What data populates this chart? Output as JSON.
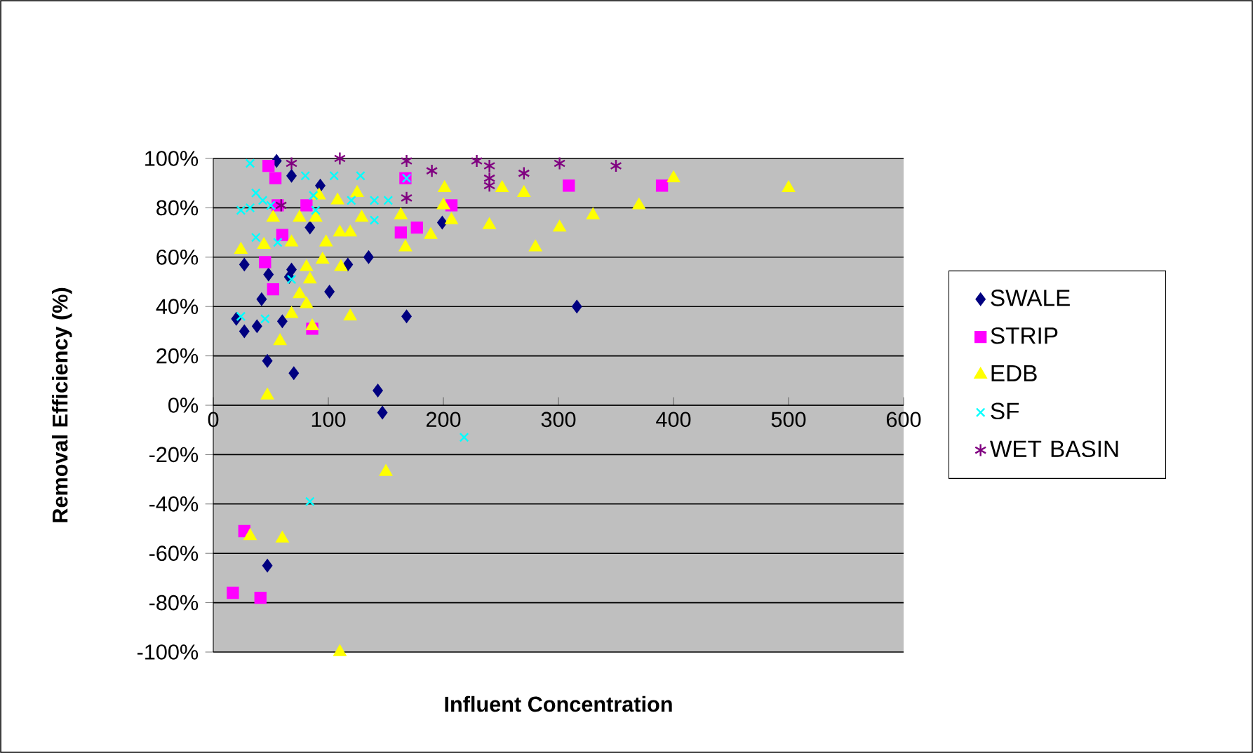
{
  "chart_data": {
    "type": "scatter",
    "xlabel": "Influent Concentration",
    "ylabel": "Removal Efficiency (%)",
    "xlim": [
      0,
      600
    ],
    "xticks": [
      0,
      100,
      200,
      300,
      400,
      500,
      600
    ],
    "ylim": [
      -100,
      100
    ],
    "yticks": [
      {
        "value": -100,
        "label": "-100%"
      },
      {
        "value": -80,
        "label": "-80%"
      },
      {
        "value": -60,
        "label": "-60%"
      },
      {
        "value": -40,
        "label": "-40%"
      },
      {
        "value": -20,
        "label": "-20%"
      },
      {
        "value": 0,
        "label": "0%"
      },
      {
        "value": 20,
        "label": "20%"
      },
      {
        "value": 40,
        "label": "40%"
      },
      {
        "value": 60,
        "label": "60%"
      },
      {
        "value": 80,
        "label": "80%"
      },
      {
        "value": 100,
        "label": "100%"
      }
    ],
    "grid": "y",
    "legend": "right",
    "series": [
      {
        "name": "SWALE",
        "color": "#000080",
        "marker": "diamond",
        "x": [
          55,
          68,
          93,
          84,
          27,
          48,
          68,
          66,
          117,
          135,
          101,
          42,
          20,
          27,
          38,
          60,
          168,
          47,
          70,
          143,
          147,
          199,
          316,
          47
        ],
        "values": [
          99,
          93,
          89,
          72,
          57,
          53,
          55,
          52,
          57,
          60,
          46,
          43,
          35,
          30,
          32,
          34,
          36,
          18,
          13,
          6,
          -3,
          74,
          40,
          -65
        ]
      },
      {
        "name": "STRIP",
        "color": "#ff00ff",
        "marker": "square",
        "x": [
          48,
          54,
          167,
          177,
          163,
          60,
          45,
          52,
          86,
          56,
          81,
          207,
          309,
          390,
          27,
          17,
          41
        ],
        "values": [
          97,
          92,
          92,
          72,
          70,
          69,
          58,
          47,
          31,
          81,
          81,
          81,
          89,
          89,
          -51,
          -76,
          -78
        ]
      },
      {
        "name": "EDB",
        "color": "#ffff00",
        "marker": "triangle",
        "x": [
          24,
          44,
          68,
          75,
          89,
          98,
          95,
          81,
          84,
          75,
          68,
          81,
          86,
          111,
          119,
          58,
          47,
          110,
          119,
          129,
          125,
          108,
          92,
          167,
          163,
          52,
          201,
          200,
          207,
          189,
          251,
          270,
          240,
          280,
          301,
          330,
          370,
          400,
          500,
          32,
          60,
          150,
          110
        ],
        "values": [
          63,
          65,
          66,
          76,
          76,
          66,
          59,
          56,
          51,
          45,
          37,
          41,
          32,
          56,
          36,
          26,
          4,
          70,
          70,
          76,
          86,
          83,
          85,
          64,
          77,
          76,
          88,
          81,
          75,
          69,
          88,
          86,
          73,
          64,
          72,
          77,
          81,
          92,
          88,
          -53,
          -54,
          -27,
          -100
        ]
      },
      {
        "name": "SF",
        "color": "#00ffff",
        "marker": "cross",
        "x": [
          32,
          37,
          43,
          24,
          32,
          50,
          80,
          87,
          89,
          105,
          128,
          120,
          140,
          140,
          152,
          37,
          56,
          68,
          24,
          45,
          168,
          84,
          218
        ],
        "values": [
          98,
          86,
          83,
          79,
          80,
          81,
          93,
          85,
          79,
          93,
          93,
          83,
          83,
          75,
          83,
          68,
          66,
          51,
          36,
          35,
          92,
          -39,
          -13
        ]
      },
      {
        "name": "WET BASIN",
        "color": "#800080",
        "x": [
          68,
          110,
          168,
          190,
          168,
          59,
          229,
          240,
          240,
          240,
          270,
          301,
          350
        ],
        "values": [
          98,
          100,
          99,
          95,
          84,
          81,
          99,
          97,
          92,
          89,
          94,
          98,
          97
        ]
      }
    ]
  }
}
